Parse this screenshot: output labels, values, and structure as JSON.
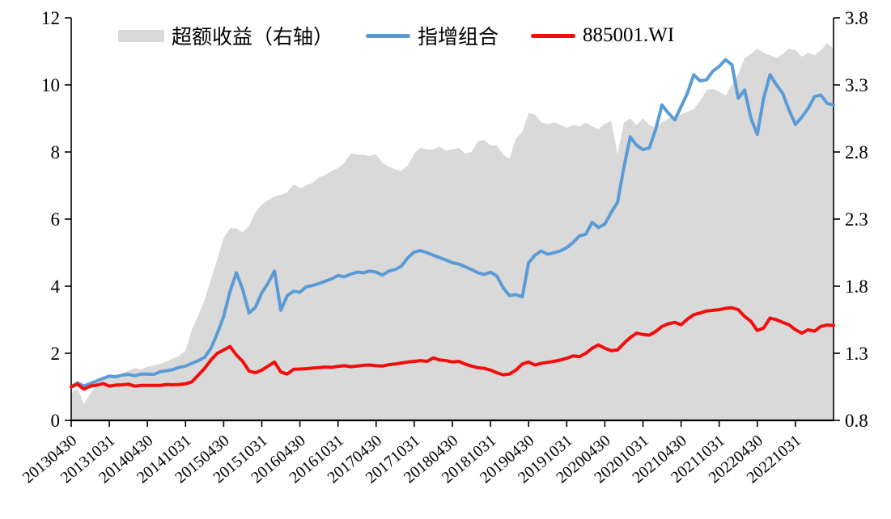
{
  "chart_data": {
    "type": "line",
    "title": "",
    "grid": false,
    "legend_position": "top",
    "left_axis": {
      "min": 0,
      "max": 12,
      "ticks": [
        0,
        2,
        4,
        6,
        8,
        10,
        12
      ],
      "tick_labels": [
        "0",
        "2",
        "4",
        "6",
        "8",
        "10",
        "12"
      ]
    },
    "right_axis": {
      "min": 0.8,
      "max": 3.8,
      "ticks": [
        0.8,
        1.3,
        1.8,
        2.3,
        2.8,
        3.3,
        3.8
      ],
      "tick_labels": [
        "0.8",
        "1.3",
        "1.8",
        "2.3",
        "2.8",
        "3.3",
        "3.8"
      ]
    },
    "x_tick_labels": [
      "20130430",
      "20131031",
      "20140430",
      "20141031",
      "20150430",
      "20151031",
      "20160430",
      "20161031",
      "20170430",
      "20171031",
      "20180430",
      "20181031",
      "20190430",
      "20191031",
      "20200430",
      "20201031",
      "20210430",
      "20211031",
      "20220430",
      "20221031"
    ],
    "x_tick_interval_points": 6,
    "series": [
      {
        "name": "超额收益（右轴）",
        "type": "area",
        "axis": "right",
        "color": "#d9d9d9",
        "values": [
          1.0,
          1.04,
          0.92,
          1.0,
          1.06,
          1.1,
          1.13,
          1.14,
          1.15,
          1.17,
          1.19,
          1.18,
          1.2,
          1.21,
          1.22,
          1.24,
          1.26,
          1.28,
          1.32,
          1.48,
          1.58,
          1.7,
          1.85,
          2.0,
          2.16,
          2.23,
          2.23,
          2.2,
          2.25,
          2.35,
          2.41,
          2.44,
          2.47,
          2.48,
          2.5,
          2.56,
          2.53,
          2.55,
          2.57,
          2.61,
          2.63,
          2.66,
          2.68,
          2.72,
          2.79,
          2.78,
          2.78,
          2.77,
          2.78,
          2.72,
          2.69,
          2.67,
          2.66,
          2.7,
          2.79,
          2.83,
          2.82,
          2.82,
          2.84,
          2.81,
          2.82,
          2.83,
          2.79,
          2.8,
          2.88,
          2.89,
          2.85,
          2.85,
          2.78,
          2.75,
          2.9,
          2.95,
          3.09,
          3.08,
          3.02,
          3.01,
          3.02,
          3.0,
          2.98,
          3.0,
          2.99,
          3.02,
          2.99,
          2.97,
          3.01,
          3.03,
          2.78,
          3.02,
          3.05,
          3.0,
          3.05,
          3.0,
          2.98,
          3.02,
          3.05,
          3.06,
          3.08,
          3.1,
          3.12,
          3.18,
          3.26,
          3.27,
          3.25,
          3.22,
          3.3,
          3.38,
          3.5,
          3.53,
          3.57,
          3.54,
          3.52,
          3.5,
          3.53,
          3.57,
          3.56,
          3.51,
          3.54,
          3.52,
          3.56,
          3.61,
          3.57
        ]
      },
      {
        "name": "指增组合",
        "type": "line",
        "axis": "left",
        "color": "#5b9bd5",
        "values": [
          1.0,
          1.12,
          1.02,
          1.1,
          1.17,
          1.25,
          1.32,
          1.3,
          1.35,
          1.37,
          1.33,
          1.38,
          1.38,
          1.37,
          1.45,
          1.48,
          1.51,
          1.58,
          1.62,
          1.7,
          1.78,
          1.88,
          2.15,
          2.6,
          3.1,
          3.85,
          4.4,
          3.9,
          3.2,
          3.37,
          3.8,
          4.1,
          4.45,
          3.28,
          3.72,
          3.85,
          3.82,
          3.98,
          4.02,
          4.08,
          4.15,
          4.22,
          4.32,
          4.28,
          4.36,
          4.42,
          4.4,
          4.45,
          4.42,
          4.33,
          4.45,
          4.5,
          4.6,
          4.85,
          5.02,
          5.06,
          5.0,
          4.92,
          4.85,
          4.78,
          4.7,
          4.66,
          4.58,
          4.5,
          4.4,
          4.35,
          4.42,
          4.3,
          3.95,
          3.72,
          3.75,
          3.68,
          4.7,
          4.92,
          5.05,
          4.95,
          5.0,
          5.05,
          5.15,
          5.3,
          5.5,
          5.55,
          5.9,
          5.75,
          5.85,
          6.2,
          6.5,
          7.55,
          8.45,
          8.2,
          8.07,
          8.12,
          8.67,
          9.4,
          9.16,
          8.96,
          9.35,
          9.76,
          10.3,
          10.12,
          10.15,
          10.41,
          10.55,
          10.75,
          10.6,
          9.6,
          9.85,
          9.0,
          8.52,
          9.6,
          10.3,
          10.0,
          9.75,
          9.25,
          8.82,
          9.04,
          9.3,
          9.65,
          9.7,
          9.45,
          9.4
        ]
      },
      {
        "name": "885001.WI",
        "type": "line",
        "axis": "left",
        "color": "#f20d0d",
        "values": [
          1.0,
          1.08,
          0.93,
          1.02,
          1.05,
          1.1,
          1.02,
          1.05,
          1.06,
          1.08,
          1.02,
          1.04,
          1.04,
          1.04,
          1.04,
          1.07,
          1.06,
          1.07,
          1.09,
          1.15,
          1.35,
          1.55,
          1.8,
          2.0,
          2.1,
          2.2,
          1.95,
          1.76,
          1.47,
          1.42,
          1.5,
          1.62,
          1.74,
          1.44,
          1.38,
          1.52,
          1.53,
          1.54,
          1.56,
          1.57,
          1.59,
          1.58,
          1.61,
          1.63,
          1.6,
          1.62,
          1.64,
          1.65,
          1.63,
          1.62,
          1.66,
          1.68,
          1.71,
          1.74,
          1.76,
          1.78,
          1.76,
          1.86,
          1.8,
          1.78,
          1.74,
          1.76,
          1.68,
          1.62,
          1.57,
          1.55,
          1.5,
          1.42,
          1.36,
          1.38,
          1.5,
          1.68,
          1.74,
          1.65,
          1.7,
          1.73,
          1.76,
          1.8,
          1.85,
          1.92,
          1.9,
          2.0,
          2.15,
          2.25,
          2.15,
          2.08,
          2.1,
          2.3,
          2.47,
          2.6,
          2.56,
          2.54,
          2.65,
          2.8,
          2.88,
          2.92,
          2.85,
          3.02,
          3.15,
          3.2,
          3.26,
          3.28,
          3.3,
          3.34,
          3.36,
          3.3,
          3.1,
          2.95,
          2.68,
          2.75,
          3.05,
          3.0,
          2.92,
          2.85,
          2.7,
          2.6,
          2.7,
          2.66,
          2.8,
          2.84,
          2.83
        ]
      }
    ]
  }
}
